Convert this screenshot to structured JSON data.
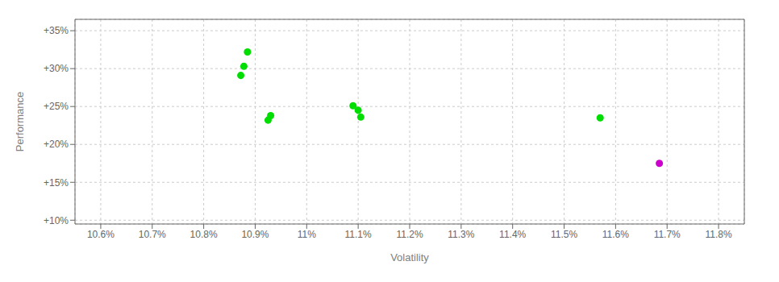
{
  "chart_data": {
    "type": "scatter",
    "xlabel": "Volatility",
    "ylabel": "Performance",
    "series": [
      {
        "color": "#00dd00",
        "x": [
          10.885,
          10.878,
          10.872,
          10.93,
          10.925,
          11.09,
          11.1,
          11.105,
          11.57
        ],
        "values": [
          32.2,
          30.3,
          29.1,
          23.8,
          23.2,
          25.1,
          24.5,
          23.6,
          23.5
        ]
      },
      {
        "color": "#cc00cc",
        "x": [
          11.685
        ],
        "values": [
          17.5
        ]
      }
    ],
    "xlim": [
      10.55,
      11.85
    ],
    "ylim": [
      9.5,
      36.5
    ],
    "xticks": [
      {
        "value": 10.6,
        "label": "10.6%"
      },
      {
        "value": 10.7,
        "label": "10.7%"
      },
      {
        "value": 10.8,
        "label": "10.8%"
      },
      {
        "value": 10.9,
        "label": "10.9%"
      },
      {
        "value": 11.0,
        "label": "11%"
      },
      {
        "value": 11.1,
        "label": "11.1%"
      },
      {
        "value": 11.2,
        "label": "11.2%"
      },
      {
        "value": 11.3,
        "label": "11.3%"
      },
      {
        "value": 11.4,
        "label": "11.4%"
      },
      {
        "value": 11.5,
        "label": "11.5%"
      },
      {
        "value": 11.6,
        "label": "11.6%"
      },
      {
        "value": 11.7,
        "label": "11.7%"
      },
      {
        "value": 11.8,
        "label": "11.8%"
      }
    ],
    "yticks": [
      {
        "value": 10,
        "label": "+10%"
      },
      {
        "value": 15,
        "label": "+15%"
      },
      {
        "value": 20,
        "label": "+20%"
      },
      {
        "value": 25,
        "label": "+25%"
      },
      {
        "value": 30,
        "label": "+30%"
      },
      {
        "value": 35,
        "label": "+35%"
      }
    ],
    "grid": true
  }
}
